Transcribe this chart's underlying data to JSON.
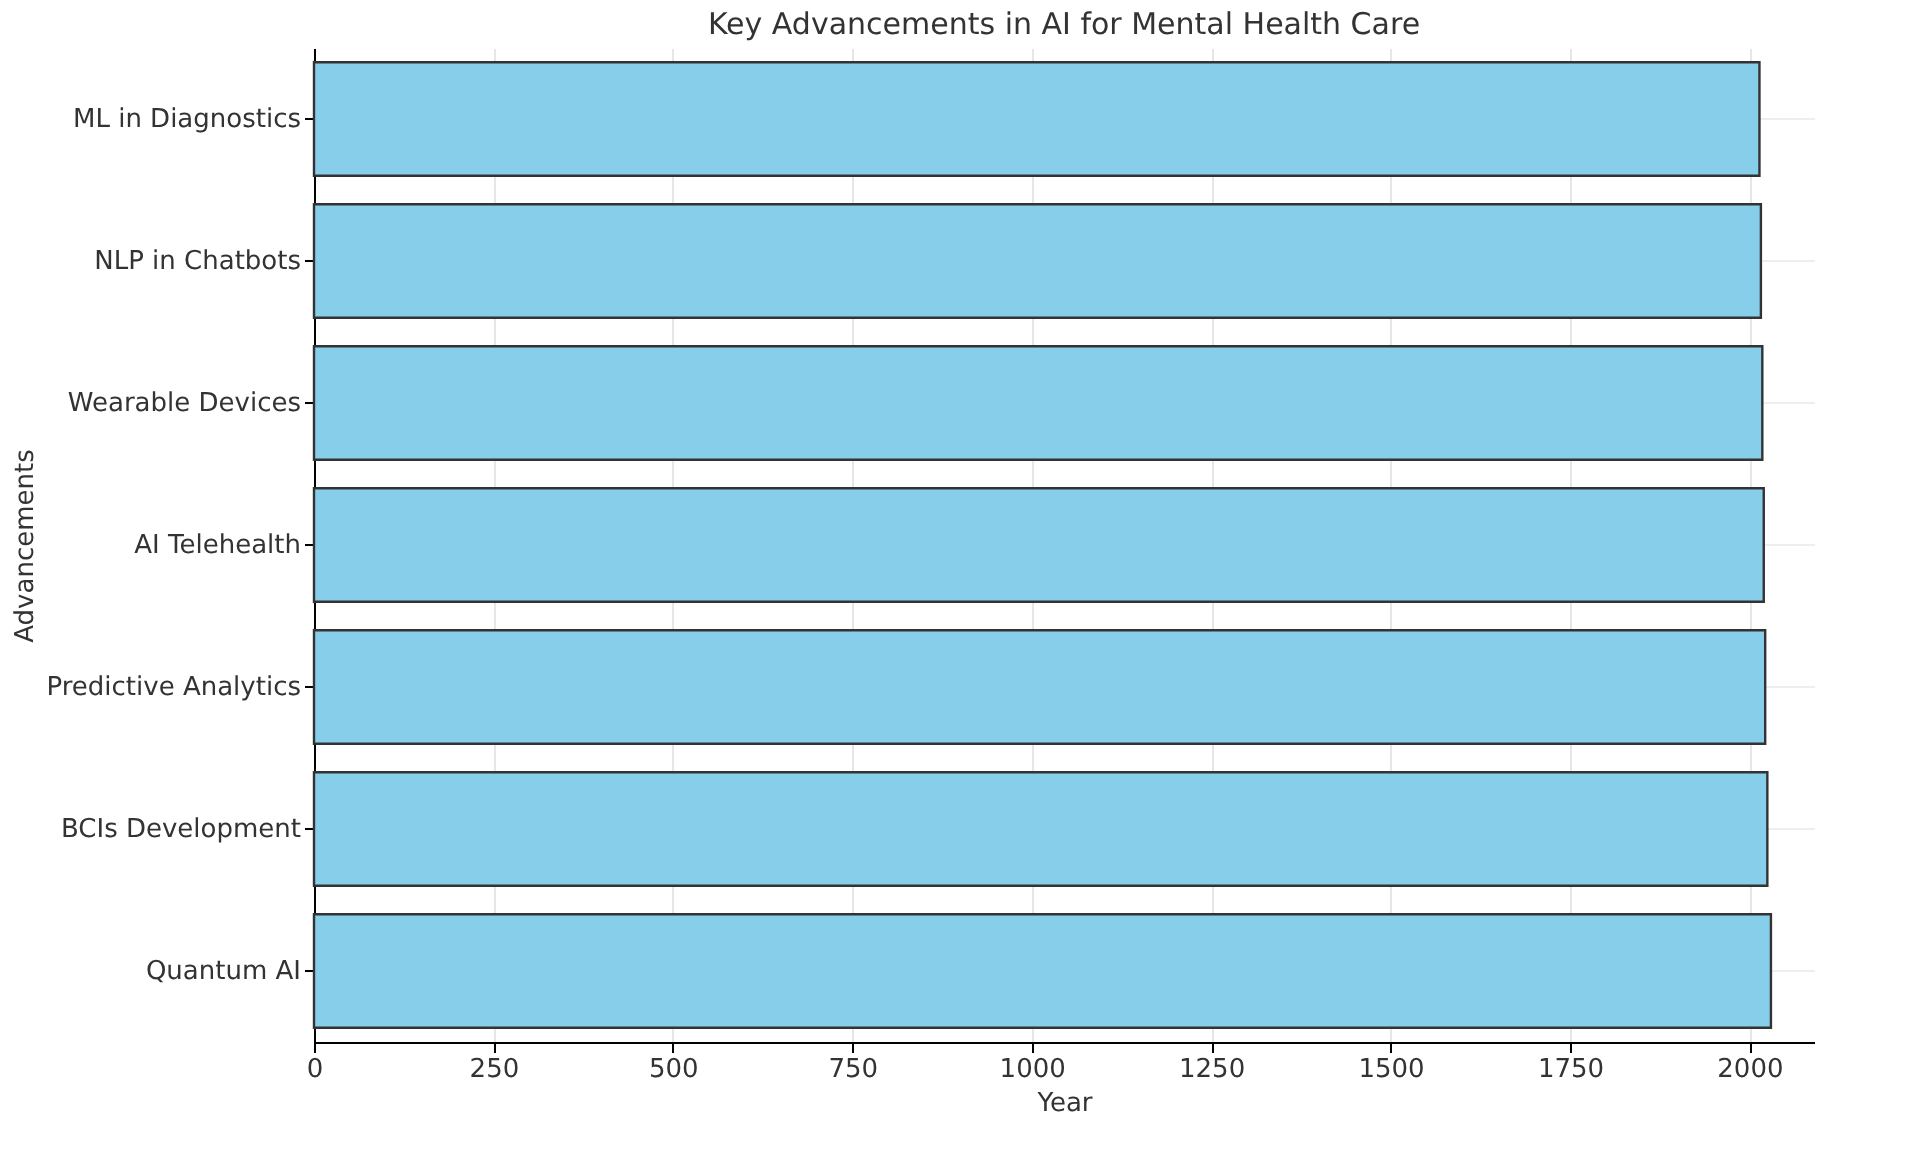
{
  "chart_data": {
    "type": "bar",
    "orientation": "horizontal",
    "title": "Key Advancements in AI for Mental Health Care",
    "xlabel": "Year",
    "ylabel": "Advancements",
    "categories": [
      "ML in Diagnostics",
      "NLP in Chatbots",
      "Wearable Devices",
      "AI Telehealth",
      "Predictive Analytics",
      "BCIs Development",
      "Quantum AI"
    ],
    "values": [
      2014,
      2016,
      2018,
      2020,
      2022,
      2025,
      2030
    ],
    "color": "#87ceeb",
    "xlim": [
      0,
      2090
    ],
    "xticks": [
      0,
      250,
      500,
      750,
      1000,
      1250,
      1500,
      1750,
      2000
    ],
    "grid": true
  }
}
